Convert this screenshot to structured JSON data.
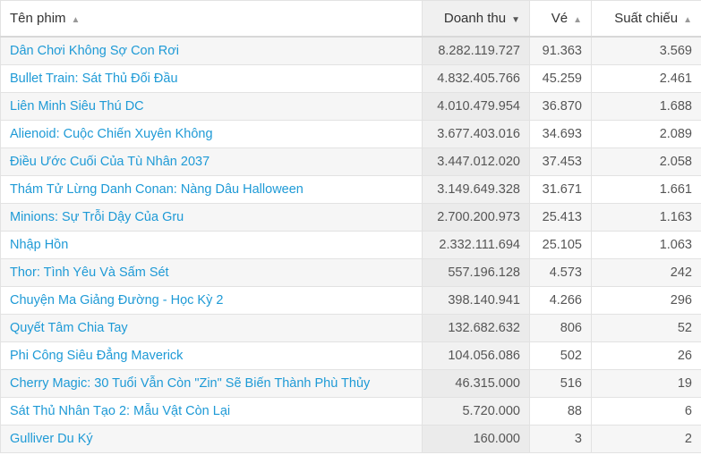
{
  "headers": [
    {
      "label": "Tên phim",
      "sort": "▲"
    },
    {
      "label": "Doanh thu",
      "sort": "▼"
    },
    {
      "label": "Vé",
      "sort": "▲"
    },
    {
      "label": "Suất chiếu",
      "sort": "▲"
    }
  ],
  "rows": [
    [
      "Dân Chơi Không Sợ Con Rơi",
      "8.282.119.727",
      "91.363",
      "3.569"
    ],
    [
      "Bullet Train: Sát Thủ Đối Đầu",
      "4.832.405.766",
      "45.259",
      "2.461"
    ],
    [
      "Liên Minh Siêu Thú DC",
      "4.010.479.954",
      "36.870",
      "1.688"
    ],
    [
      "Alienoid: Cuộc Chiến Xuyên Không",
      "3.677.403.016",
      "34.693",
      "2.089"
    ],
    [
      "Điều Ước Cuối Của Tù Nhân 2037",
      "3.447.012.020",
      "37.453",
      "2.058"
    ],
    [
      "Thám Tử Lừng Danh Conan: Nàng Dâu Halloween",
      "3.149.649.328",
      "31.671",
      "1.661"
    ],
    [
      "Minions: Sự Trỗi Dậy Của Gru",
      "2.700.200.973",
      "25.413",
      "1.163"
    ],
    [
      "Nhập Hồn",
      "2.332.111.694",
      "25.105",
      "1.063"
    ],
    [
      "Thor: Tình Yêu Và Sấm Sét",
      "557.196.128",
      "4.573",
      "242"
    ],
    [
      "Chuyện Ma Giảng Đường - Học Kỳ 2",
      "398.140.941",
      "4.266",
      "296"
    ],
    [
      "Quyết Tâm Chia Tay",
      "132.682.632",
      "806",
      "52"
    ],
    [
      "Phi Công Siêu Đẳng Maverick",
      "104.056.086",
      "502",
      "26"
    ],
    [
      "Cherry Magic: 30 Tuổi Vẫn Còn \"Zin\" Sẽ Biến Thành Phù Thủy",
      "46.315.000",
      "516",
      "19"
    ],
    [
      "Sát Thủ Nhân Tạo 2: Mẫu Vật Còn Lại",
      "5.720.000",
      "88",
      "6"
    ],
    [
      "Gulliver Du Ký",
      "160.000",
      "3",
      "2"
    ]
  ]
}
